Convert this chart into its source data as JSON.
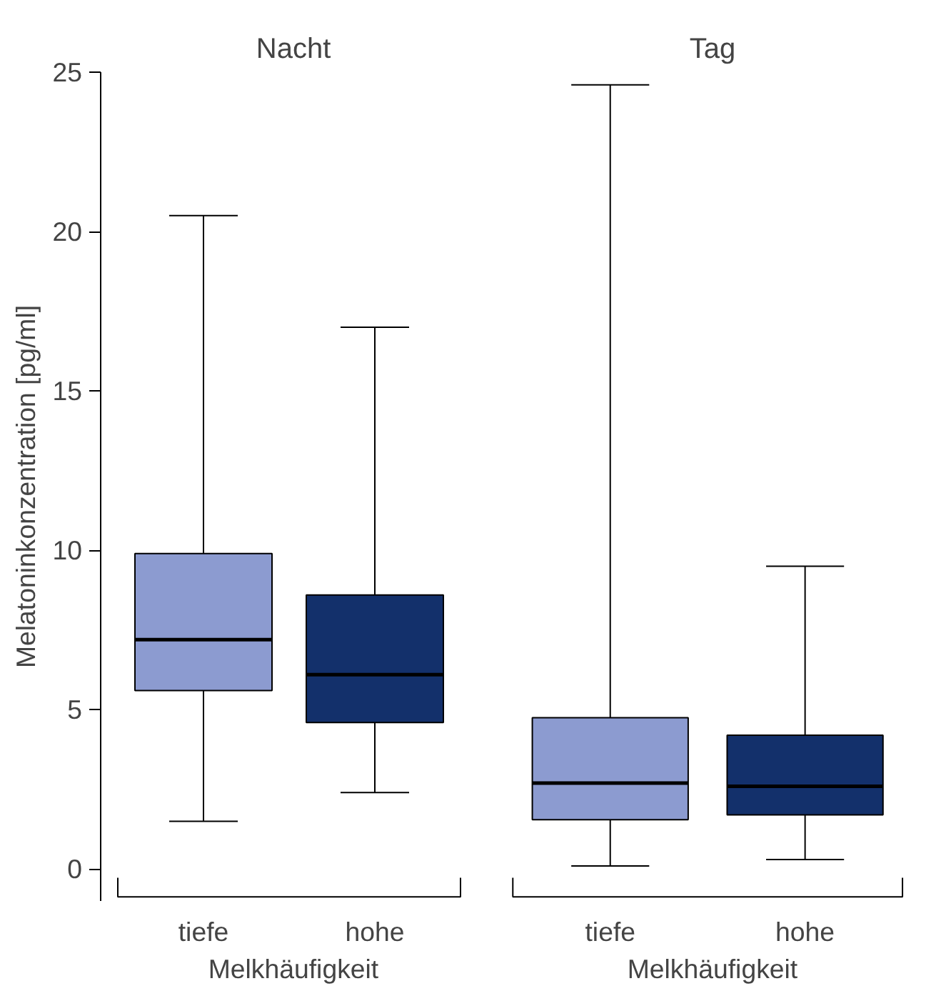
{
  "chart_data": [
    {
      "type": "box",
      "title": "Nacht",
      "xlabel": "Melkhäufigkeit",
      "ylabel": "Melatoninkonzentration [pg/ml]",
      "categories": [
        "tiefe",
        "hohe"
      ],
      "ylim": [
        -1,
        25
      ],
      "yticks": [
        0,
        5,
        10,
        15,
        20,
        25
      ],
      "grid": false,
      "colors": [
        "#8c9bd0",
        "#13306b"
      ],
      "boxes": [
        {
          "low": 1.5,
          "q1": 5.6,
          "median": 7.2,
          "q3": 9.9,
          "high": 20.5
        },
        {
          "low": 2.4,
          "q1": 4.6,
          "median": 6.1,
          "q3": 8.6,
          "high": 17.0
        }
      ]
    },
    {
      "type": "box",
      "title": "Tag",
      "xlabel": "Melkhäufigkeit",
      "categories": [
        "tiefe",
        "hohe"
      ],
      "ylim": [
        -1,
        25
      ],
      "tick_labels": "x",
      "grid": false,
      "colors": [
        "#8c9bd0",
        "#13306b"
      ],
      "boxes": [
        {
          "low": 0.1,
          "q1": 1.55,
          "median": 2.7,
          "q3": 4.75,
          "high": 24.6
        },
        {
          "low": 0.3,
          "q1": 1.7,
          "median": 2.6,
          "q3": 4.2,
          "high": 9.5
        }
      ]
    }
  ]
}
